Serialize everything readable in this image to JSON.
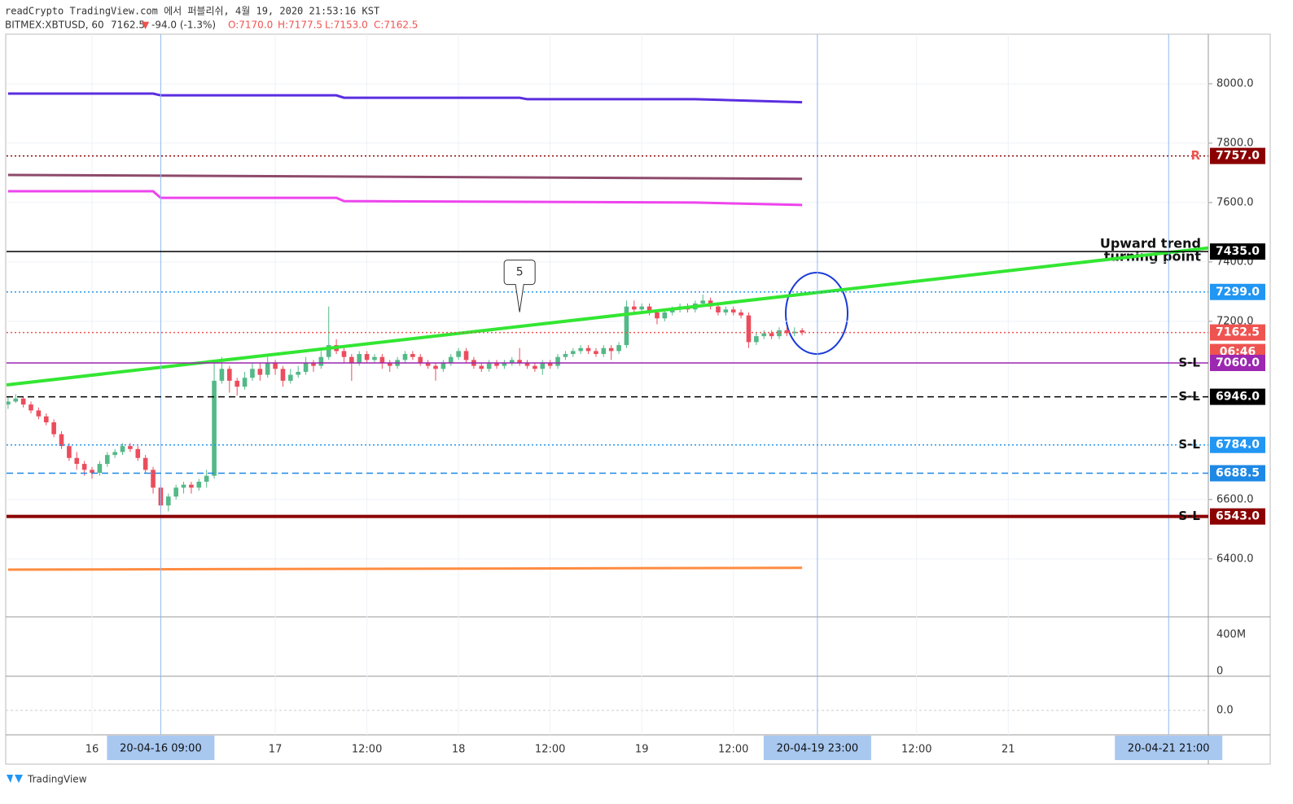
{
  "header": {
    "line1": "readCrypto TradingView.com 에서 퍼블리쉬, 4월 19, 2020 21:53:16 KST",
    "symbol": "BITMEX:XBTUSD, 60",
    "last": "7162.5",
    "arrow": "▼",
    "change": "-94.0 (-1.3%)",
    "open": "O:7170.0",
    "high": "H:7177.5",
    "low": "L:7153.0",
    "close": "C:7162.5"
  },
  "chart_data": {
    "type": "candlestick",
    "up_color": "#53b987",
    "down_color": "#eb4d5c",
    "xlim": [
      -0.2,
      157.2
    ],
    "ylim": [
      6205,
      8167
    ],
    "yticks": [
      {
        "value": 6400,
        "label": "6400.0"
      },
      {
        "value": 6600,
        "label": "6600.0"
      },
      {
        "value": 7200,
        "label": "7200.0"
      },
      {
        "value": 7400,
        "label": "7400.0"
      },
      {
        "value": 7600,
        "label": "7600.0"
      },
      {
        "value": 7800,
        "label": "7800.0"
      },
      {
        "value": 8000,
        "label": "8000.0"
      }
    ],
    "xticks": [
      {
        "value": 11,
        "label": "16"
      },
      {
        "value": 35,
        "label": "17"
      },
      {
        "value": 47,
        "label": "12:00"
      },
      {
        "value": 59,
        "label": "18"
      },
      {
        "value": 71,
        "label": "12:00"
      },
      {
        "value": 83,
        "label": "19"
      },
      {
        "value": 95,
        "label": "12:00"
      },
      {
        "value": 119,
        "label": "12:00"
      },
      {
        "value": 131,
        "label": "21"
      }
    ],
    "time_markers": [
      {
        "value": 20,
        "label": "20-04-16 09:00"
      },
      {
        "value": 106,
        "label": "20-04-19 23:00"
      },
      {
        "value": 152,
        "label": "20-04-21 21:00"
      }
    ],
    "candles": [
      [
        6920,
        6945,
        6905,
        6930
      ],
      [
        6930,
        6955,
        6925,
        6940
      ],
      [
        6940,
        6945,
        6910,
        6920
      ],
      [
        6920,
        6930,
        6890,
        6900
      ],
      [
        6900,
        6910,
        6870,
        6880
      ],
      [
        6880,
        6890,
        6850,
        6860
      ],
      [
        6860,
        6870,
        6810,
        6820
      ],
      [
        6820,
        6830,
        6770,
        6780
      ],
      [
        6780,
        6790,
        6730,
        6740
      ],
      [
        6740,
        6760,
        6700,
        6720
      ],
      [
        6720,
        6730,
        6680,
        6700
      ],
      [
        6700,
        6710,
        6670,
        6690
      ],
      [
        6690,
        6730,
        6680,
        6720
      ],
      [
        6720,
        6760,
        6710,
        6750
      ],
      [
        6750,
        6770,
        6740,
        6760
      ],
      [
        6760,
        6790,
        6750,
        6780
      ],
      [
        6780,
        6790,
        6760,
        6770
      ],
      [
        6770,
        6780,
        6730,
        6740
      ],
      [
        6740,
        6750,
        6690,
        6700
      ],
      [
        6700,
        6710,
        6620,
        6640
      ],
      [
        6640,
        6650,
        6555,
        6580
      ],
      [
        6580,
        6620,
        6560,
        6610
      ],
      [
        6610,
        6650,
        6600,
        6640
      ],
      [
        6640,
        6660,
        6620,
        6650
      ],
      [
        6650,
        6660,
        6620,
        6640
      ],
      [
        6640,
        6670,
        6630,
        6660
      ],
      [
        6660,
        6700,
        6640,
        6680
      ],
      [
        6680,
        7060,
        6670,
        7000
      ],
      [
        7000,
        7080,
        6990,
        7040
      ],
      [
        7040,
        7050,
        6960,
        7000
      ],
      [
        7000,
        7010,
        6950,
        6980
      ],
      [
        6980,
        7030,
        6970,
        7010
      ],
      [
        7010,
        7060,
        7000,
        7040
      ],
      [
        7040,
        7060,
        7000,
        7020
      ],
      [
        7020,
        7080,
        7010,
        7060
      ],
      [
        7060,
        7070,
        7020,
        7040
      ],
      [
        7040,
        7050,
        6980,
        7000
      ],
      [
        7000,
        7040,
        6990,
        7020
      ],
      [
        7020,
        7050,
        7010,
        7030
      ],
      [
        7030,
        7080,
        7020,
        7060
      ],
      [
        7060,
        7070,
        7030,
        7050
      ],
      [
        7050,
        7100,
        7040,
        7080
      ],
      [
        7080,
        7250,
        7070,
        7120
      ],
      [
        7120,
        7140,
        7090,
        7100
      ],
      [
        7100,
        7110,
        7060,
        7080
      ],
      [
        7080,
        7090,
        7000,
        7060
      ],
      [
        7060,
        7100,
        7050,
        7090
      ],
      [
        7090,
        7100,
        7060,
        7070
      ],
      [
        7070,
        7090,
        7060,
        7080
      ],
      [
        7080,
        7090,
        7040,
        7060
      ],
      [
        7060,
        7070,
        7030,
        7050
      ],
      [
        7050,
        7080,
        7040,
        7070
      ],
      [
        7070,
        7100,
        7060,
        7090
      ],
      [
        7090,
        7100,
        7070,
        7080
      ],
      [
        7080,
        7090,
        7050,
        7060
      ],
      [
        7060,
        7070,
        7040,
        7050
      ],
      [
        7050,
        7060,
        7000,
        7040
      ],
      [
        7040,
        7070,
        7030,
        7060
      ],
      [
        7060,
        7090,
        7050,
        7080
      ],
      [
        7080,
        7110,
        7070,
        7100
      ],
      [
        7100,
        7110,
        7060,
        7070
      ],
      [
        7070,
        7080,
        7040,
        7050
      ],
      [
        7050,
        7060,
        7030,
        7040
      ],
      [
        7040,
        7070,
        7030,
        7060
      ],
      [
        7060,
        7070,
        7040,
        7050
      ],
      [
        7050,
        7070,
        7040,
        7060
      ],
      [
        7060,
        7080,
        7050,
        7070
      ],
      [
        7070,
        7110,
        7050,
        7060
      ],
      [
        7060,
        7070,
        7040,
        7050
      ],
      [
        7050,
        7060,
        7030,
        7040
      ],
      [
        7040,
        7070,
        7020,
        7060
      ],
      [
        7060,
        7070,
        7040,
        7050
      ],
      [
        7050,
        7090,
        7040,
        7080
      ],
      [
        7080,
        7100,
        7070,
        7090
      ],
      [
        7090,
        7110,
        7080,
        7100
      ],
      [
        7100,
        7120,
        7090,
        7110
      ],
      [
        7110,
        7120,
        7090,
        7100
      ],
      [
        7100,
        7110,
        7080,
        7090
      ],
      [
        7090,
        7120,
        7080,
        7110
      ],
      [
        7110,
        7120,
        7070,
        7100
      ],
      [
        7100,
        7130,
        7090,
        7120
      ],
      [
        7120,
        7270,
        7110,
        7250
      ],
      [
        7250,
        7270,
        7230,
        7240
      ],
      [
        7240,
        7260,
        7230,
        7250
      ],
      [
        7250,
        7260,
        7220,
        7230
      ],
      [
        7230,
        7240,
        7190,
        7210
      ],
      [
        7210,
        7240,
        7200,
        7230
      ],
      [
        7230,
        7250,
        7220,
        7240
      ],
      [
        7240,
        7260,
        7230,
        7250
      ],
      [
        7250,
        7260,
        7230,
        7240
      ],
      [
        7240,
        7270,
        7230,
        7260
      ],
      [
        7260,
        7290,
        7250,
        7270
      ],
      [
        7270,
        7280,
        7240,
        7250
      ],
      [
        7250,
        7260,
        7220,
        7230
      ],
      [
        7230,
        7250,
        7220,
        7240
      ],
      [
        7240,
        7250,
        7220,
        7230
      ],
      [
        7230,
        7240,
        7210,
        7220
      ],
      [
        7220,
        7230,
        7110,
        7130
      ],
      [
        7130,
        7160,
        7120,
        7150
      ],
      [
        7150,
        7170,
        7140,
        7160
      ],
      [
        7160,
        7170,
        7140,
        7150
      ],
      [
        7150,
        7180,
        7140,
        7170
      ],
      [
        7170,
        7180,
        7150,
        7160
      ],
      [
        7160,
        7180,
        7150,
        7165
      ],
      [
        7170,
        7177.5,
        7153,
        7162.5
      ]
    ],
    "levels": [
      {
        "value": 7757,
        "label": "7757.0",
        "tag": "R",
        "color": "#8b0000",
        "style": "dotted"
      },
      {
        "value": 7435,
        "label": "7435.0",
        "color": "#000000",
        "style": "solid"
      },
      {
        "value": 7299,
        "label": "7299.0",
        "color": "#2196f3",
        "style": "dotted"
      },
      {
        "value": 7162.5,
        "label": "7162.5",
        "color": "#ef5350",
        "style": "dotted"
      },
      {
        "value": 7060,
        "label": "7060.0",
        "tag": "S-L",
        "color": "#9c27b0",
        "style": "solid"
      },
      {
        "value": 6946,
        "label": "6946.0",
        "tag": "S-L",
        "color": "#000000",
        "style": "dashed"
      },
      {
        "value": 6784,
        "label": "6784.0",
        "tag": "S-L",
        "color": "#2196f3",
        "style": "dotted"
      },
      {
        "value": 6688.5,
        "label": "6688.5",
        "color": "#1e88e5",
        "style": "dashed"
      },
      {
        "value": 6543,
        "label": "6543.0",
        "tag": "S-L",
        "color": "#8b0000",
        "style": "thick"
      }
    ],
    "countdown": "06:46",
    "lines": [
      {
        "color": "#5b2ee0",
        "points": [
          [
            0,
            7967
          ],
          [
            19,
            7967
          ],
          [
            20,
            7961
          ],
          [
            43,
            7961
          ],
          [
            44,
            7953
          ],
          [
            67,
            7953
          ],
          [
            68,
            7948
          ],
          [
            90,
            7948
          ],
          [
            104,
            7938
          ]
        ]
      },
      {
        "color": "#8e4a6b",
        "points": [
          [
            0,
            7693
          ],
          [
            104,
            7680
          ]
        ]
      },
      {
        "color": "#ee44ee",
        "points": [
          [
            0,
            7638
          ],
          [
            19,
            7638
          ],
          [
            20,
            7616
          ],
          [
            43,
            7616
          ],
          [
            44,
            7605
          ],
          [
            90,
            7600
          ],
          [
            104,
            7592
          ]
        ]
      },
      {
        "color": "#ff8c40",
        "points": [
          [
            0,
            6364
          ],
          [
            104,
            6370
          ]
        ]
      }
    ],
    "trendline": {
      "color": "#33e633",
      "points": [
        [
          -0.2,
          6986
        ],
        [
          157.2,
          7447
        ]
      ]
    },
    "trend_label": [
      "Upward trend",
      "turning point"
    ],
    "callout": {
      "text": "5",
      "x": 67,
      "y": 7220
    },
    "volume_ticks": [
      "400M",
      "0"
    ],
    "macd_ticks": [
      "0.0"
    ]
  },
  "footer": "TradingView"
}
